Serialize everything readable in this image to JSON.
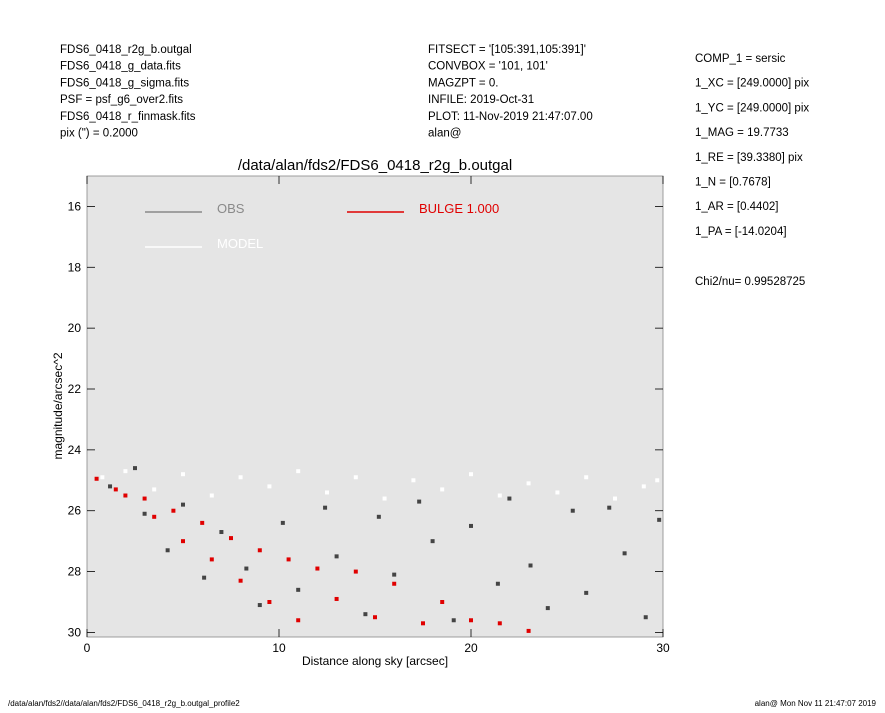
{
  "header_left": [
    "FDS6_0418_r2g_b.outgal",
    "FDS6_0418_g_data.fits",
    "FDS6_0418_g_sigma.fits",
    "PSF    = psf_g6_over2.fits",
    "FDS6_0418_r_finmask.fits",
    "pix (\") =  0.2000"
  ],
  "header_center": [
    "FITSECT = '[105:391,105:391]'",
    "CONVBOX = '101, 101'",
    "MAGZPT  =              0.",
    "INFILE: 2019-Oct-31",
    "PLOT: 11-Nov-2019 21:47:07.00",
    "alan@"
  ],
  "parameters": [
    "COMP_1  = sersic",
    "1_XC    = [249.0000] pix",
    "1_YC    = [249.0000] pix",
    "1_MAG   = 19.7733",
    "1_RE    = [39.3380] pix",
    "1_N     = [0.7678]",
    "1_AR    = [0.4402]",
    "1_PA    = [-14.0204]"
  ],
  "chi2": "Chi2/nu=      0.99528725",
  "footer_left": "/data/alan/fds2//data/alan/fds2/FDS6_0418_r2g_b.outgal_profile2",
  "footer_right": "alan@  Mon Nov 11 21:47:07 2019",
  "chart_data": {
    "type": "scatter",
    "title": "/data/alan/fds2/FDS6_0418_r2g_b.outgal",
    "x_label": "Distance along sky [arcsec]",
    "y_label": "magnitude/arcsec^2",
    "xlim": [
      0,
      30
    ],
    "ylim": [
      15,
      30.15
    ],
    "y_inverted": true,
    "xticks": [
      0,
      10,
      20,
      30
    ],
    "yticks": [
      16,
      18,
      20,
      22,
      24,
      26,
      28,
      30
    ],
    "background": "#e5e5e5",
    "series": [
      {
        "name": "OBS",
        "color": "#444444",
        "legend_color": "#8a8a8a",
        "x": [
          1.2,
          2.5,
          3,
          4.2,
          5,
          6.1,
          7,
          8.3,
          9,
          10.2,
          11,
          12.4,
          13,
          14.5,
          15.2,
          16,
          17.3,
          18,
          19.1,
          20,
          21.4,
          22,
          23.1,
          24,
          25.3,
          26,
          27.2,
          28,
          29.1,
          29.8
        ],
        "values": [
          25.2,
          24.6,
          26.1,
          27.3,
          25.8,
          28.2,
          26.7,
          27.9,
          29.1,
          26.4,
          28.6,
          25.9,
          27.5,
          29.4,
          26.2,
          28.1,
          25.7,
          27.0,
          29.6,
          26.5,
          28.4,
          25.6,
          27.8,
          29.2,
          26.0,
          28.7,
          25.9,
          27.4,
          29.5,
          26.3
        ]
      },
      {
        "name": "MODEL",
        "color": "#ffffff",
        "legend_color": "#ffffff",
        "x": [
          0.8,
          2,
          3.5,
          5,
          6.5,
          8,
          9.5,
          11,
          12.5,
          14,
          15.5,
          17,
          18.5,
          20,
          21.5,
          23,
          24.5,
          26,
          27.5,
          29,
          29.7
        ],
        "values": [
          24.9,
          24.7,
          25.3,
          24.8,
          25.5,
          24.9,
          25.2,
          24.7,
          25.4,
          24.9,
          25.6,
          25.0,
          25.3,
          24.8,
          25.5,
          25.1,
          25.4,
          24.9,
          25.6,
          25.2,
          25.0
        ]
      },
      {
        "name": "BULGE  1.000",
        "color": "#e00000",
        "legend_color": "#e00000",
        "x": [
          0.5,
          1.5,
          2,
          3,
          3.5,
          4.5,
          5,
          6,
          6.5,
          7.5,
          8,
          9,
          9.5,
          10.5,
          11,
          12,
          13,
          14,
          15,
          16,
          17.5,
          18.5,
          20,
          21.5,
          23
        ],
        "values": [
          24.95,
          25.3,
          25.5,
          25.6,
          26.2,
          26.0,
          27.0,
          26.4,
          27.6,
          26.9,
          28.3,
          27.3,
          29.0,
          27.6,
          29.6,
          27.9,
          28.9,
          28.0,
          29.5,
          28.4,
          29.7,
          29.0,
          29.6,
          29.7,
          29.95
        ]
      }
    ]
  }
}
